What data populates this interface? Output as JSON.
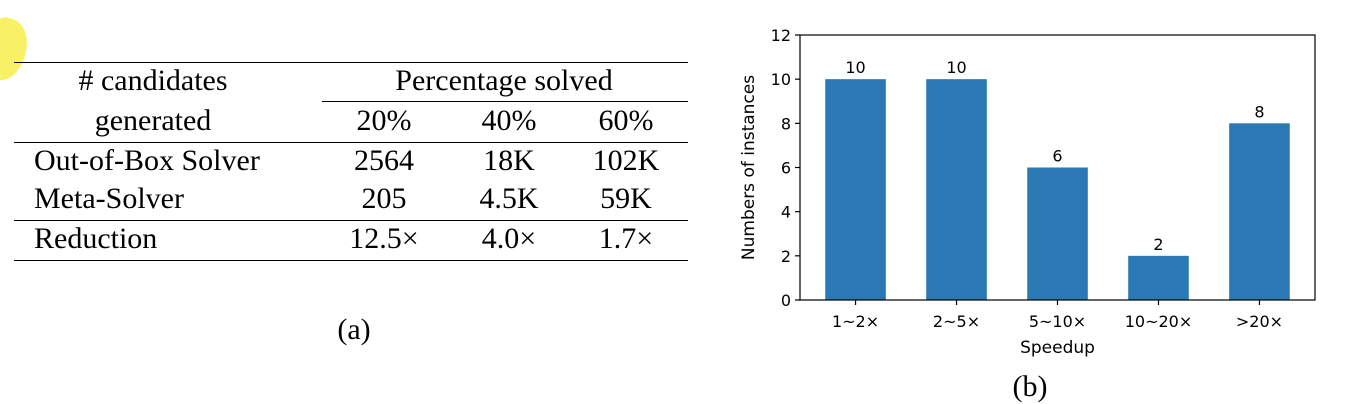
{
  "table": {
    "header_col1_line1": "# candidates",
    "header_col1_line2": "generated",
    "header_group": "Percentage solved",
    "header_subcols": [
      "20%",
      "40%",
      "60%"
    ],
    "rows": [
      {
        "label": "Out-of-Box Solver",
        "values": [
          "2564",
          "18K",
          "102K"
        ]
      },
      {
        "label": "Meta-Solver",
        "values": [
          "205",
          "4.5K",
          "59K"
        ]
      },
      {
        "label": "Reduction",
        "values": [
          "12.5×",
          "4.0×",
          "1.7×"
        ]
      }
    ],
    "caption": "(a)"
  },
  "chart_data": {
    "type": "bar",
    "categories": [
      "1~2×",
      "2~5×",
      "5~10×",
      "10~20×",
      ">20×"
    ],
    "values": [
      10,
      10,
      6,
      2,
      8
    ],
    "xlabel": "Speedup",
    "ylabel": "Numbers of instances",
    "ylim": [
      0,
      12
    ],
    "yticks": [
      0,
      2,
      4,
      6,
      8,
      10,
      12
    ],
    "data_labels": [
      "10",
      "10",
      "6",
      "2",
      "8"
    ],
    "bar_color": "#2a78b4",
    "grid": false,
    "caption": "(b)"
  }
}
